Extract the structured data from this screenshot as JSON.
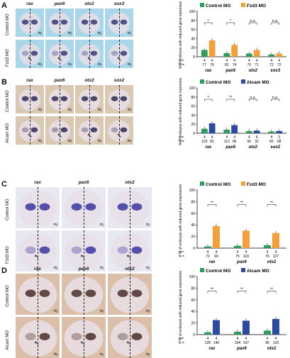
{
  "panels": [
    {
      "letter": "A",
      "genes": [
        "rax",
        "pax6",
        "otx2",
        "sox3"
      ],
      "rows": [
        "Control MO",
        "Fzd3 MO"
      ],
      "inj": "inj.",
      "bg": "#a9d6e8",
      "stain": "#3a3a7a"
    },
    {
      "letter": "B",
      "genes": [
        "rax",
        "pax6",
        "otx2",
        "sox2"
      ],
      "rows": [
        "Control MO",
        "Alcam MO"
      ],
      "inj": "inj.",
      "bg": "#d9c8b2",
      "stain": "#2a2a55"
    },
    {
      "letter": "C",
      "genes": [
        "rax",
        "pax6",
        "otx2"
      ],
      "rows": [
        "Control MO",
        "Fzd3 MO"
      ],
      "inj": "inj.",
      "bg": "#e8e8f2",
      "stain": "#3b35a0"
    },
    {
      "letter": "D",
      "genes": [
        "rax",
        "pax6",
        "otx2"
      ],
      "rows": [
        "Control MO",
        "Alcam MO"
      ],
      "inj": "inj.",
      "bg": "#dcbfa8",
      "stain": "#4a2f2a"
    }
  ],
  "chart_data": [
    {
      "type": "bar",
      "categories": [
        "rax",
        "pax6",
        "otx2",
        "sox3"
      ],
      "ylabel": "% of embryos with reduced gene expression",
      "ylim": [
        0,
        100
      ],
      "series": [
        {
          "name": "Control MO",
          "color": "#2e9d5b",
          "values": [
            15,
            8,
            7,
            5
          ]
        },
        {
          "name": "Fzd3 MO",
          "color": "#f4a03a",
          "values": [
            36,
            26,
            15,
            7
          ]
        }
      ],
      "sig": [
        "*",
        "*",
        "n.s.",
        "n.s."
      ],
      "n": [
        "4",
        "4",
        "4",
        "4",
        "4",
        "4",
        "4",
        "4"
      ],
      "N": [
        "77",
        "76",
        "82",
        "74",
        "70",
        "71",
        "72",
        "72"
      ]
    },
    {
      "type": "bar",
      "categories": [
        "rax",
        "pax6",
        "otx2",
        "sox2"
      ],
      "ylabel": "% of embryos with reduced gene expression",
      "ylim": [
        0,
        100
      ],
      "series": [
        {
          "name": "Control MO",
          "color": "#2e9d5b",
          "values": [
            10,
            8,
            5,
            4
          ]
        },
        {
          "name": "Alcam MO",
          "color": "#2c4aa0",
          "values": [
            22,
            18,
            6,
            5
          ]
        }
      ],
      "sig": [
        "*",
        "**",
        "n.s.",
        "n.s."
      ],
      "n": [
        "4",
        "4",
        "4",
        "4",
        "4",
        "4",
        "4",
        "3"
      ],
      "N": [
        "103",
        "81",
        "113",
        "96",
        "90",
        "92",
        "82",
        "68"
      ]
    },
    {
      "type": "bar",
      "categories": [
        "rax",
        "pax6",
        "otx2"
      ],
      "ylabel": "% of embryos with reduced gene expression",
      "ylim": [
        0,
        100
      ],
      "series": [
        {
          "name": "Control MO",
          "color": "#2e9d5b",
          "values": [
            3,
            4,
            5
          ]
        },
        {
          "name": "Fzd3 MO",
          "color": "#f4a03a",
          "values": [
            38,
            30,
            26
          ]
        }
      ],
      "sig": [
        "**",
        "**",
        "**"
      ],
      "n": [
        "4",
        "4",
        "4",
        "4",
        "4",
        "4"
      ],
      "N": [
        "72",
        "69",
        "75",
        "118",
        "76",
        "127"
      ]
    },
    {
      "type": "bar",
      "categories": [
        "rax",
        "pax6",
        "otx2"
      ],
      "ylabel": "% of embryos with reduced gene expression",
      "ylim": [
        0,
        100
      ],
      "series": [
        {
          "name": "Control MO",
          "color": "#2e9d5b",
          "values": [
            4,
            5,
            7
          ]
        },
        {
          "name": "Alcam MO",
          "color": "#2c4aa0",
          "values": [
            25,
            24,
            27
          ]
        }
      ],
      "sig": [
        "**",
        "**",
        "**"
      ],
      "n": [
        "4",
        "4",
        "4",
        "4",
        "4",
        "4"
      ],
      "N": [
        "126",
        "146",
        "104",
        "107",
        "96",
        "133"
      ]
    }
  ],
  "axis": {
    "ticks": [
      "0",
      "20",
      "40",
      "60",
      "80",
      "100"
    ],
    "n_label": "n =",
    "N_label": "N ="
  }
}
